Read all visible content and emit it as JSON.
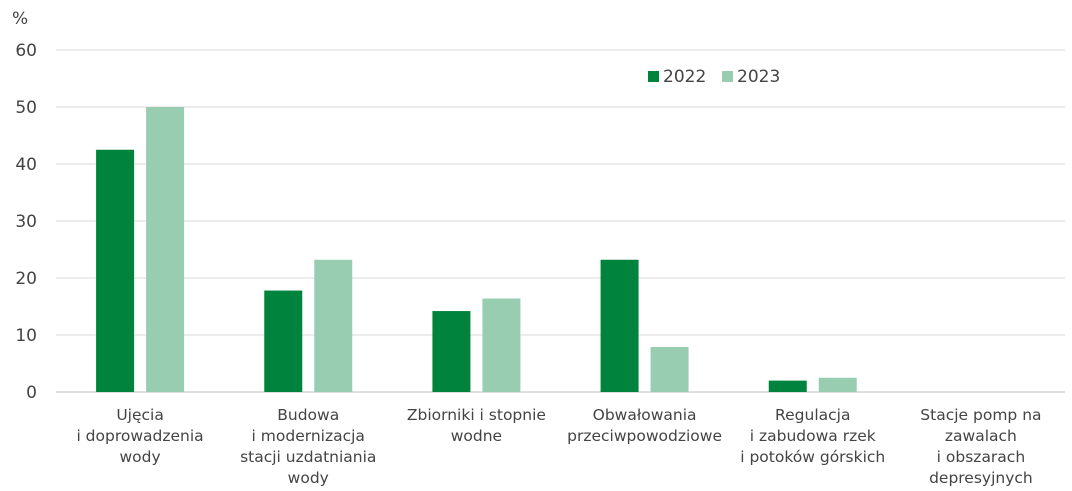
{
  "chart_data": {
    "type": "bar",
    "ylabel": "%",
    "ylim": [
      0,
      60
    ],
    "yticks": [
      0,
      10,
      20,
      30,
      40,
      50,
      60
    ],
    "grid": true,
    "legend_position": "top-right",
    "categories": [
      [
        "Ujęcia",
        "i doprowadzenia",
        "wody"
      ],
      [
        "Budowa",
        "i modernizacja",
        "stacji uzdatniania",
        "wody"
      ],
      [
        "Zbiorniki i stopnie",
        "wodne"
      ],
      [
        "Obwałowania",
        "przeciwpowodziowe"
      ],
      [
        "Regulacja",
        "i zabudowa rzek",
        "i potoków górskich"
      ],
      [
        "Stacje pomp na",
        "zawalach",
        "i obszarach",
        "depresyjnych"
      ]
    ],
    "series": [
      {
        "name": "2022",
        "color": "#00843D",
        "values": [
          42.5,
          17.8,
          14.2,
          23.2,
          2.0,
          0
        ]
      },
      {
        "name": "2023",
        "color": "#99CDB1",
        "values": [
          50.0,
          23.2,
          16.4,
          7.9,
          2.5,
          0
        ]
      }
    ]
  }
}
